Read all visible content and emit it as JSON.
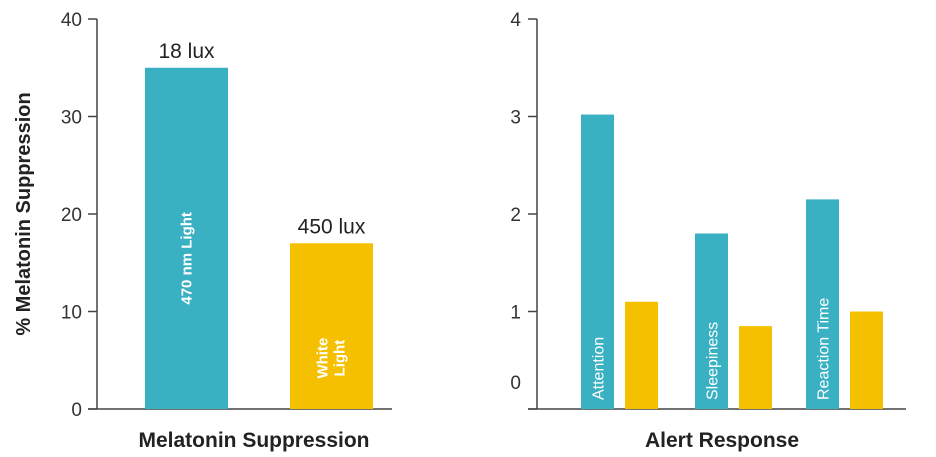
{
  "chart_data": [
    {
      "type": "bar",
      "xlabel": "Melatonin Suppression",
      "ylabel": "% Melatonin  Suppression",
      "ylim": [
        0,
        40
      ],
      "yticks": [
        "0",
        "10",
        "20",
        "30",
        "40"
      ],
      "grid": false,
      "series": [
        {
          "values": [
            35
          ]
        },
        {
          "values": [
            17
          ]
        }
      ],
      "bar_labels": [
        "470 nm Light",
        "White Light"
      ],
      "annotations": [
        "18 lux",
        "450 lux"
      ],
      "colors": [
        "#3ab0c3",
        "#f5c000"
      ]
    },
    {
      "type": "bar",
      "xlabel": "Alert Response",
      "ylabel": "",
      "ylim": [
        0,
        4
      ],
      "yticks": [
        "0",
        "1",
        "2",
        "3",
        "4"
      ],
      "grid": false,
      "categories": [
        "Attention",
        "Sleepiness",
        "Reaction Time"
      ],
      "series": [
        {
          "values": [
            3.02,
            1.8,
            2.15
          ]
        },
        {
          "values": [
            1.1,
            0.85,
            1.0
          ]
        }
      ],
      "colors": [
        "#3ab0c3",
        "#f5c000"
      ]
    }
  ]
}
